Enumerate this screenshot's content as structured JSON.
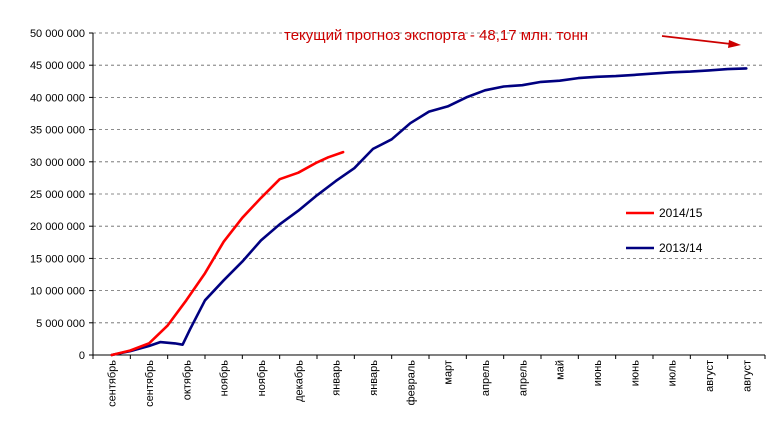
{
  "chart_data": {
    "type": "line",
    "title": "",
    "xlabel": "",
    "ylabel": "",
    "ylim": [
      0,
      50000000
    ],
    "yticks": [
      0,
      5000000,
      10000000,
      15000000,
      20000000,
      25000000,
      30000000,
      35000000,
      40000000,
      45000000,
      50000000
    ],
    "ytick_labels": [
      "0",
      "5 000 000",
      "10 000 000",
      "15 000 000",
      "20 000 000",
      "25 000 000",
      "30 000 000",
      "35 000 000",
      "40 000 000",
      "45 000 000",
      "50 000 000"
    ],
    "categories": [
      "сентябрь",
      "сентябрь",
      "октябрь",
      "ноябрь",
      "ноябрь",
      "декабрь",
      "январь",
      "январь",
      "февраль",
      "март",
      "апрель",
      "апрель",
      "май",
      "июнь",
      "июнь",
      "июль",
      "август",
      "август"
    ],
    "grid": "horizontal dashed",
    "legend_position": "right",
    "series": [
      {
        "name": "2014/15",
        "color": "#ff0000",
        "x": [
          0,
          0.5,
          1,
          1.5,
          2,
          2.5,
          3,
          3.5,
          4,
          4.5,
          5,
          5.5,
          5.8,
          6.2
        ],
        "values": [
          0,
          700000,
          1800000,
          4600000,
          8500000,
          12700000,
          17600000,
          21300000,
          24400000,
          27300000,
          28300000,
          29900000,
          30700000,
          31500000
        ]
      },
      {
        "name": "2013/14",
        "color": "#000080",
        "x": [
          0,
          0.5,
          1,
          1.3,
          1.7,
          1.9,
          2.1,
          2.5,
          3,
          3.5,
          4,
          4.5,
          5,
          5.5,
          6,
          6.5,
          7,
          7.5,
          8,
          8.5,
          9,
          9.5,
          10,
          10.5,
          11,
          11.5,
          12,
          12.5,
          13,
          13.5,
          14,
          14.5,
          15,
          15.5,
          16,
          16.5,
          17
        ],
        "values": [
          0,
          600000,
          1400000,
          2000000,
          1800000,
          1600000,
          4000000,
          8500000,
          11600000,
          14500000,
          17800000,
          20300000,
          22400000,
          24800000,
          27000000,
          29000000,
          32000000,
          33500000,
          36000000,
          37800000,
          38600000,
          40000000,
          41100000,
          41700000,
          41900000,
          42400000,
          42600000,
          43000000,
          43200000,
          43300000,
          43500000,
          43700000,
          43900000,
          44000000,
          44200000,
          44400000,
          44500000
        ]
      }
    ],
    "annotation": {
      "text": "текущий прогноз экспорта - 48,17 млн. тонн",
      "color": "#cc0000"
    }
  }
}
